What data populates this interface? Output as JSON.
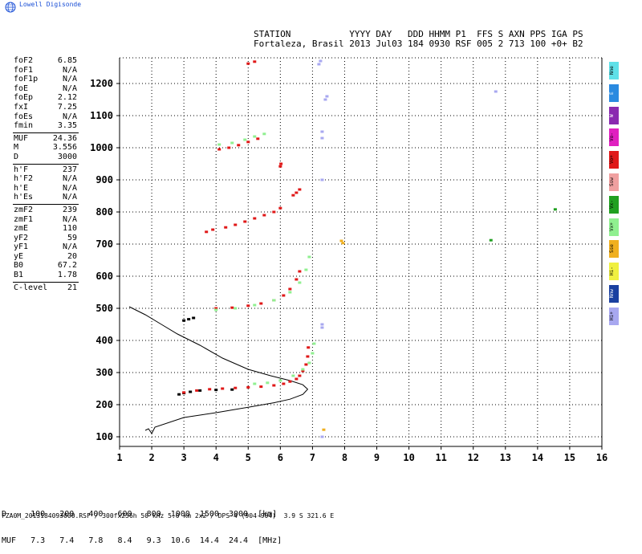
{
  "header": {
    "logo_text": "Lowell Digisonde",
    "line1": "STATION           YYYY DAY   DDD HHMM P1  FFS S AXN PPS IGA PS",
    "line2": "Fortaleza, Brasil 2013 Jul03 184 0930 RSF 005 2 713 100 +0+ B2"
  },
  "params": [
    {
      "k": "foF2",
      "v": "6.85"
    },
    {
      "k": "foF1",
      "v": "N/A"
    },
    {
      "k": "foF1p",
      "v": "N/A"
    },
    {
      "k": "foE",
      "v": "N/A"
    },
    {
      "k": "foEp",
      "v": "2.12"
    },
    {
      "k": "fxI",
      "v": "7.25"
    },
    {
      "k": "foEs",
      "v": "N/A"
    },
    {
      "k": "fmin",
      "v": "3.35"
    },
    {
      "sep": true
    },
    {
      "k": "MUF",
      "v": "24.36"
    },
    {
      "k": "M",
      "v": "3.556"
    },
    {
      "k": "D",
      "v": "3000"
    },
    {
      "sep": true
    },
    {
      "k": "h'F",
      "v": "237"
    },
    {
      "k": "h'F2",
      "v": "N/A"
    },
    {
      "k": "h'E",
      "v": "N/A"
    },
    {
      "k": "h'Es",
      "v": "N/A"
    },
    {
      "sep": true
    },
    {
      "k": "zmF2",
      "v": "239"
    },
    {
      "k": "zmF1",
      "v": "N/A"
    },
    {
      "k": "zmE",
      "v": "110"
    },
    {
      "k": "yF2",
      "v": "59"
    },
    {
      "k": "yF1",
      "v": "N/A"
    },
    {
      "k": "yE",
      "v": "20"
    },
    {
      "k": "B0",
      "v": "67.2"
    },
    {
      "k": "B1",
      "v": "1.78"
    },
    {
      "sep": true
    },
    {
      "k": "C-level",
      "v": "21"
    }
  ],
  "legend": [
    {
      "label": "Nne",
      "color": "#5fe0e8"
    },
    {
      "label": "E",
      "color": "#2a8ae0"
    },
    {
      "label": "W",
      "color": "#8a2ab0"
    },
    {
      "label": "Vo-",
      "color": "#e020c0"
    },
    {
      "label": "Vo+",
      "color": "#e01818"
    },
    {
      "label": "Ssw",
      "color": "#f0a0a0"
    },
    {
      "label": "Vx-",
      "color": "#20a020"
    },
    {
      "label": "Vx+",
      "color": "#90f090"
    },
    {
      "label": "Sse",
      "color": "#f0b020"
    },
    {
      "label": "Hi-",
      "color": "#f0f040"
    },
    {
      "label": "Nnw",
      "color": "#1a40a0"
    },
    {
      "label": "Hi+",
      "color": "#a8a8f0"
    }
  ],
  "bottom": {
    "line1": "D     100   200   400   600   800  1000  1500  3000  [km]",
    "line2": "MUF   7.3   7.4   7.8   8.4   9.3  10.6  14.4  24.4  [MHz]"
  },
  "footer": "FZA0M_2013184093000.RSF / 300fx256h 50 kHz 5.0 km 2x2 / DPS-4 (904-904)  3.9 S 321.6 E",
  "chart_data": {
    "type": "scatter",
    "title": "",
    "xlabel": "",
    "ylabel": "",
    "xlim": [
      1,
      16
    ],
    "ylim": [
      70,
      1280
    ],
    "x_ticks": [
      1,
      2,
      3,
      4,
      5,
      6,
      7,
      8,
      9,
      10,
      11,
      12,
      13,
      14,
      15,
      16
    ],
    "y_ticks": [
      100,
      200,
      300,
      400,
      500,
      600,
      700,
      800,
      900,
      1000,
      1100,
      1200
    ],
    "grid": true,
    "series": [
      {
        "color": "#000000",
        "points": [
          [
            2.85,
            232
          ],
          [
            3.0,
            236
          ],
          [
            3.2,
            240
          ],
          [
            3.5,
            244
          ],
          [
            4.0,
            246
          ],
          [
            4.5,
            247
          ],
          [
            3.0,
            462
          ],
          [
            3.15,
            466
          ],
          [
            3.3,
            470
          ]
        ]
      },
      {
        "color": "#e01818",
        "points": [
          [
            3.0,
            238
          ],
          [
            3.4,
            244
          ],
          [
            3.8,
            248
          ],
          [
            4.2,
            250
          ],
          [
            4.6,
            252
          ],
          [
            5.0,
            254
          ],
          [
            5.4,
            256
          ],
          [
            5.8,
            260
          ],
          [
            6.1,
            265
          ],
          [
            6.3,
            272
          ],
          [
            6.5,
            280
          ],
          [
            6.6,
            290
          ],
          [
            6.7,
            305
          ],
          [
            6.8,
            325
          ],
          [
            6.85,
            350
          ],
          [
            6.87,
            378
          ],
          [
            4.0,
            500
          ],
          [
            4.5,
            502
          ],
          [
            5.0,
            508
          ],
          [
            5.4,
            515
          ],
          [
            5.8,
            525
          ],
          [
            6.1,
            540
          ],
          [
            6.3,
            560
          ],
          [
            6.5,
            590
          ],
          [
            6.6,
            615
          ],
          [
            3.7,
            738
          ],
          [
            3.9,
            745
          ],
          [
            4.3,
            752
          ],
          [
            4.6,
            760
          ],
          [
            4.9,
            770
          ],
          [
            5.2,
            780
          ],
          [
            5.5,
            790
          ],
          [
            5.8,
            800
          ],
          [
            6.0,
            812
          ],
          [
            6.4,
            852
          ],
          [
            6.5,
            860
          ],
          [
            6.6,
            870
          ],
          [
            4.1,
            995
          ],
          [
            4.4,
            1000
          ],
          [
            4.7,
            1008
          ],
          [
            5.0,
            1018
          ],
          [
            5.3,
            1028
          ],
          [
            6.0,
            942
          ],
          [
            6.02,
            950
          ],
          [
            5.0,
            1262
          ],
          [
            5.2,
            1268
          ]
        ]
      },
      {
        "color": "#90f090",
        "points": [
          [
            5.2,
            265
          ],
          [
            5.6,
            268
          ],
          [
            6.0,
            275
          ],
          [
            6.4,
            290
          ],
          [
            6.7,
            310
          ],
          [
            6.9,
            330
          ],
          [
            7.0,
            360
          ],
          [
            7.05,
            390
          ],
          [
            4.0,
            495
          ],
          [
            4.6,
            500
          ],
          [
            5.2,
            510
          ],
          [
            5.8,
            525
          ],
          [
            6.3,
            550
          ],
          [
            6.6,
            580
          ],
          [
            6.8,
            620
          ],
          [
            6.9,
            660
          ],
          [
            4.1,
            1010
          ],
          [
            4.5,
            1015
          ],
          [
            4.9,
            1025
          ],
          [
            5.2,
            1035
          ],
          [
            5.5,
            1043
          ]
        ]
      },
      {
        "color": "#a8a8f0",
        "points": [
          [
            7.3,
            440
          ],
          [
            7.3,
            450
          ],
          [
            7.3,
            900
          ],
          [
            7.3,
            1030
          ],
          [
            7.3,
            1050
          ],
          [
            7.4,
            1150
          ],
          [
            7.45,
            1160
          ],
          [
            7.2,
            1260
          ],
          [
            7.25,
            1270
          ],
          [
            7.3,
            100
          ],
          [
            12.7,
            1175
          ]
        ]
      },
      {
        "color": "#f0b020",
        "points": [
          [
            7.95,
            703
          ],
          [
            7.9,
            710
          ],
          [
            7.35,
            122
          ]
        ]
      },
      {
        "color": "#20a020",
        "points": [
          [
            12.55,
            712
          ],
          [
            14.55,
            808
          ]
        ]
      }
    ],
    "profile": [
      [
        1.8,
        120
      ],
      [
        1.9,
        125
      ],
      [
        2.0,
        110
      ],
      [
        2.1,
        130
      ],
      [
        3.0,
        160
      ],
      [
        4.0,
        175
      ],
      [
        5.0,
        192
      ],
      [
        5.8,
        206
      ],
      [
        6.3,
        217
      ],
      [
        6.7,
        232
      ],
      [
        6.85,
        248
      ],
      [
        6.7,
        262
      ],
      [
        6.3,
        275
      ],
      [
        5.7,
        290
      ],
      [
        5.0,
        310
      ],
      [
        4.2,
        345
      ],
      [
        3.5,
        385
      ],
      [
        2.8,
        420
      ],
      [
        2.3,
        450
      ],
      [
        1.8,
        480
      ],
      [
        1.3,
        505
      ]
    ]
  }
}
